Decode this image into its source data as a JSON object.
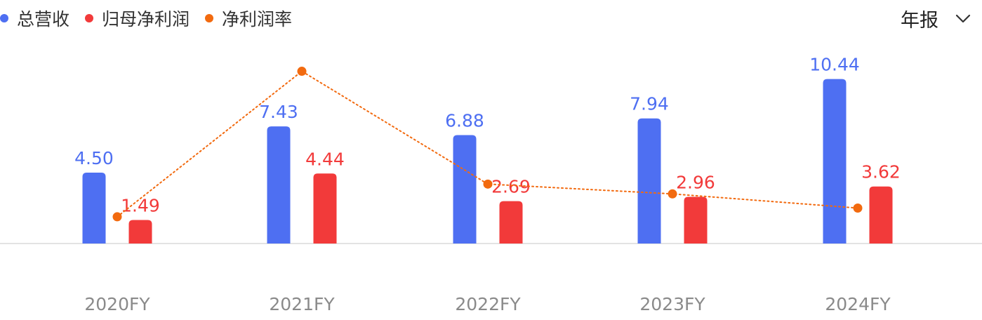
{
  "legend": {
    "items": [
      {
        "label": "总营收",
        "color": "#4E6FF2"
      },
      {
        "label": "归母净利润",
        "color": "#F23A3A"
      },
      {
        "label": "净利润率",
        "color": "#F26A0F"
      }
    ]
  },
  "period_selector": {
    "label": "年报",
    "icon": "chevron-down-icon"
  },
  "chart_data": {
    "type": "bar",
    "categories": [
      "2020FY",
      "2021FY",
      "2022FY",
      "2023FY",
      "2024FY"
    ],
    "series": [
      {
        "name": "总营收",
        "kind": "bar",
        "color": "#4E6FF2",
        "values": [
          4.5,
          7.43,
          6.88,
          7.94,
          10.44
        ],
        "labels": [
          "4.50",
          "7.43",
          "6.88",
          "7.94",
          "10.44"
        ]
      },
      {
        "name": "归母净利润",
        "kind": "bar",
        "color": "#F23A3A",
        "values": [
          1.49,
          4.44,
          2.69,
          2.96,
          3.62
        ],
        "labels": [
          "1.49",
          "4.44",
          "2.69",
          "2.96",
          "3.62"
        ]
      },
      {
        "name": "净利润率",
        "kind": "line",
        "style": "dotted",
        "color": "#F26A0F",
        "values": [
          33.1,
          59.8,
          39.1,
          37.3,
          34.7
        ]
      }
    ],
    "ylim": [
      0,
      11
    ],
    "grid": false,
    "legend_position": "top-left"
  }
}
